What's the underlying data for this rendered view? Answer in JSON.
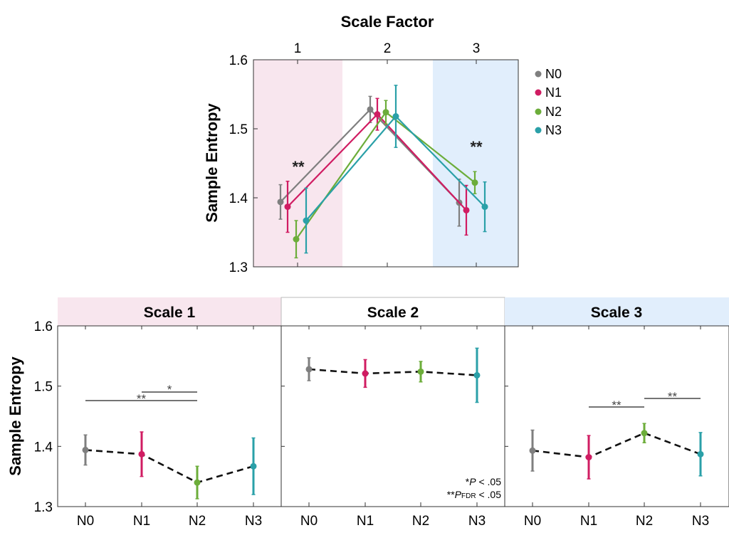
{
  "colors": {
    "N0": "#7f7f7f",
    "N1": "#d01c62",
    "N2": "#6cad3a",
    "N3": "#2aa0a8",
    "shade_scale1": "#f8e6ee",
    "shade_scale3": "#e1eefc",
    "axis": "#333333",
    "line": "#111111"
  },
  "chart_data": [
    {
      "type": "line",
      "title": "Scale Factor",
      "xlabel": "Scale Factor",
      "ylabel": "Sample Entropy",
      "ylim": [
        1.3,
        1.6
      ],
      "yticks": [
        "1.3",
        "1.4",
        "1.5",
        "1.6"
      ],
      "categories": [
        "1",
        "2",
        "3"
      ],
      "legend": [
        "N0",
        "N1",
        "N2",
        "N3"
      ],
      "legend_position": "right",
      "series": [
        {
          "name": "N0",
          "values": [
            1.394,
            1.528,
            1.393
          ],
          "errors": [
            0.025,
            0.019,
            0.034
          ]
        },
        {
          "name": "N1",
          "values": [
            1.387,
            1.521,
            1.382
          ],
          "errors": [
            0.037,
            0.023,
            0.036
          ]
        },
        {
          "name": "N2",
          "values": [
            1.34,
            1.524,
            1.422
          ],
          "errors": [
            0.027,
            0.017,
            0.016
          ]
        },
        {
          "name": "N3",
          "values": [
            1.367,
            1.518,
            1.387
          ],
          "errors": [
            0.047,
            0.045,
            0.036
          ]
        }
      ],
      "annotations": [
        {
          "text": "**",
          "category": "1"
        },
        {
          "text": "**",
          "category": "3"
        }
      ]
    },
    {
      "type": "line",
      "title": "Scale 1",
      "ylabel": "Sample Entropy",
      "ylim": [
        1.3,
        1.6
      ],
      "yticks": [
        "1.3",
        "1.4",
        "1.5",
        "1.6"
      ],
      "categories": [
        "N0",
        "N1",
        "N2",
        "N3"
      ],
      "values": [
        1.394,
        1.387,
        1.34,
        1.367
      ],
      "errors": [
        0.025,
        0.037,
        0.027,
        0.047
      ],
      "significance": [
        {
          "from": "N1",
          "to": "N2",
          "label": "*"
        },
        {
          "from": "N0",
          "to": "N2",
          "label": "**"
        }
      ]
    },
    {
      "type": "line",
      "title": "Scale 2",
      "ylim": [
        1.3,
        1.6
      ],
      "categories": [
        "N0",
        "N1",
        "N2",
        "N3"
      ],
      "values": [
        1.528,
        1.521,
        1.524,
        1.518
      ],
      "errors": [
        0.019,
        0.023,
        0.017,
        0.045
      ],
      "significance": [],
      "notes": [
        "*P < .05",
        "**PFDR < .05"
      ]
    },
    {
      "type": "line",
      "title": "Scale 3",
      "ylim": [
        1.3,
        1.6
      ],
      "categories": [
        "N0",
        "N1",
        "N2",
        "N3"
      ],
      "values": [
        1.393,
        1.382,
        1.422,
        1.387
      ],
      "errors": [
        0.034,
        0.036,
        0.016,
        0.036
      ],
      "significance": [
        {
          "from": "N1",
          "to": "N2",
          "label": "**"
        },
        {
          "from": "N2",
          "to": "N3",
          "label": "**"
        }
      ]
    }
  ],
  "notes": {
    "p05_prefix": "*",
    "p05_sym": "P",
    "p05_rest": " < .05",
    "pfdr_prefix": "**",
    "pfdr_sym": "P",
    "pfdr_sub": "FDR",
    "pfdr_rest": " < .05"
  }
}
